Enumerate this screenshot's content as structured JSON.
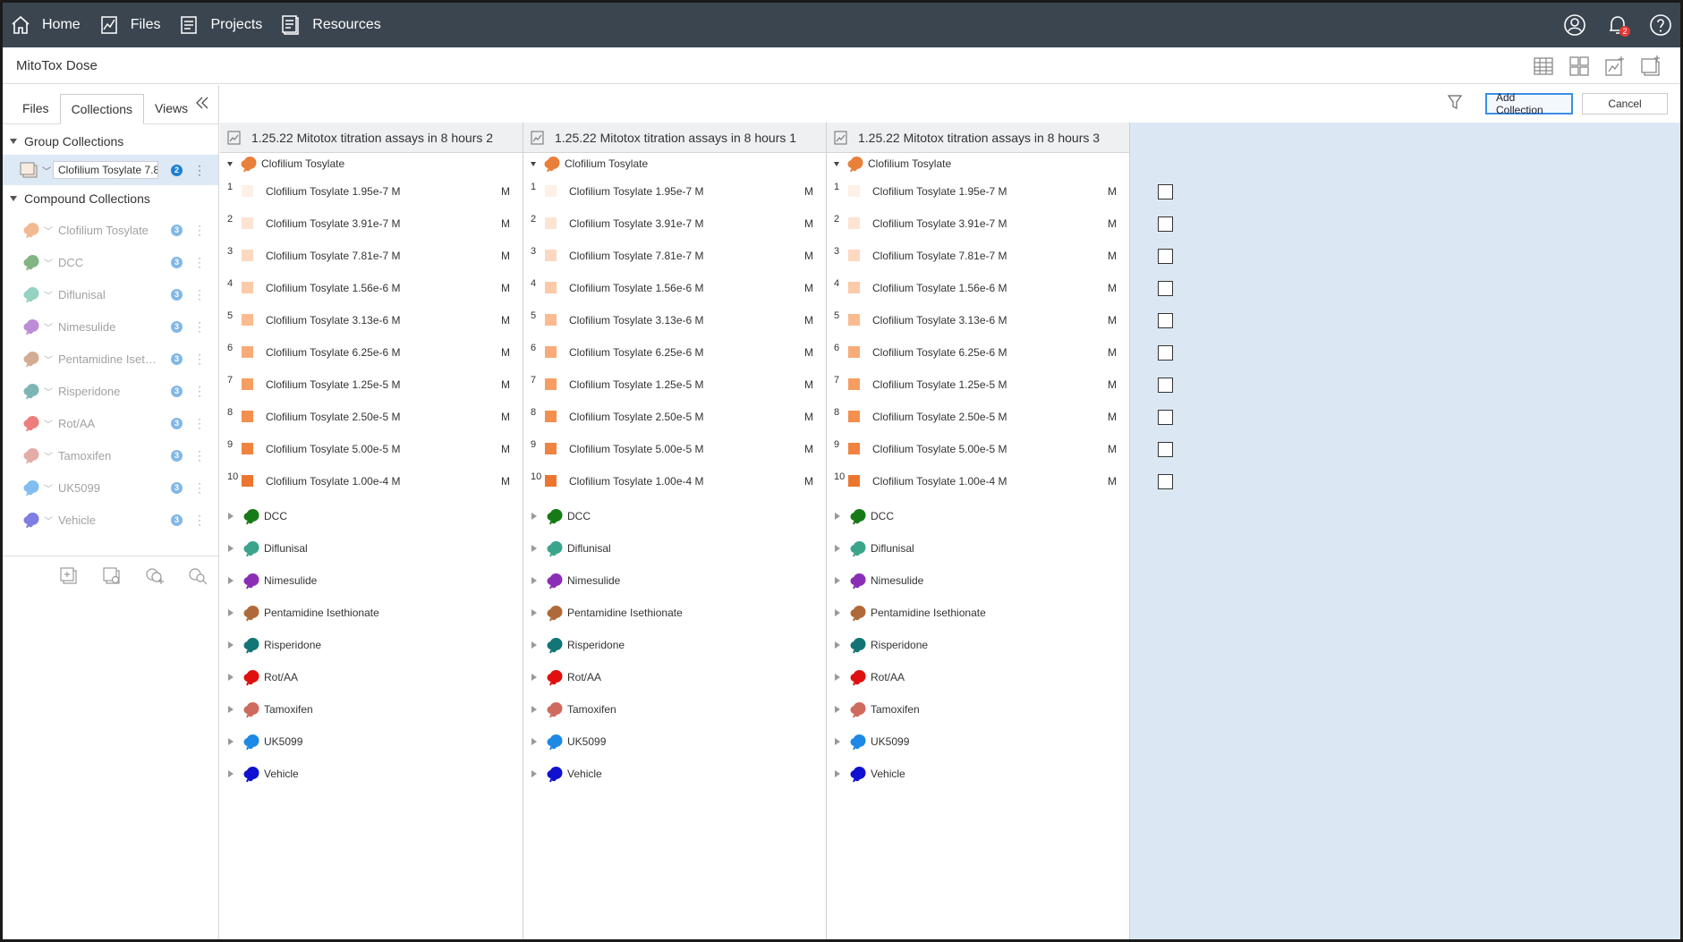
{
  "nav": {
    "items": [
      {
        "label": "Home",
        "icon": "home-icon"
      },
      {
        "label": "Files",
        "icon": "chart-file-icon"
      },
      {
        "label": "Projects",
        "icon": "projects-icon"
      },
      {
        "label": "Resources",
        "icon": "resources-icon"
      }
    ],
    "notification_count": "2"
  },
  "app_title": "MitoTox Dose",
  "left_panel": {
    "tabs": [
      "Files",
      "Collections",
      "Views"
    ],
    "active_tab": "Collections",
    "group_section_title": "Group Collections",
    "group_item": {
      "label": "Clofilium Tosylate 7.8",
      "count": "2"
    },
    "compound_section_title": "Compound Collections",
    "compounds": [
      {
        "name": "Clofilium Tosylate",
        "count": "3",
        "color": "#e8803a"
      },
      {
        "name": "DCC",
        "count": "3",
        "color": "#1e7a1e"
      },
      {
        "name": "Diflunisal",
        "count": "3",
        "color": "#3fae8f"
      },
      {
        "name": "Nimesulide",
        "count": "3",
        "color": "#8a2fb5"
      },
      {
        "name": "Pentamidine Iseth...",
        "count": "3",
        "color": "#b06a3a"
      },
      {
        "name": "Risperidone",
        "count": "3",
        "color": "#147a7a"
      },
      {
        "name": "Rot/AA",
        "count": "3",
        "color": "#e01515"
      },
      {
        "name": "Tamoxifen",
        "count": "3",
        "color": "#cf6a5e"
      },
      {
        "name": "UK5099",
        "count": "3",
        "color": "#1e88e5"
      },
      {
        "name": "Vehicle",
        "count": "3",
        "color": "#1515d0"
      }
    ]
  },
  "actions": {
    "add_collection": "Add Collection",
    "cancel": "Cancel"
  },
  "columns": [
    {
      "title": "1.25.22 Mitotox titration assays in 8 hours 2",
      "checked_index": 2,
      "active": false
    },
    {
      "title": "1.25.22 Mitotox titration assays in 8 hours 1",
      "checked_index": 2,
      "active": false
    },
    {
      "title": "1.25.22 Mitotox titration assays in 8 hours 3",
      "checked_index": -1,
      "active": true
    }
  ],
  "expanded_compound": {
    "name": "Clofilium Tosylate",
    "color": "#e8803a"
  },
  "doses": [
    {
      "idx": "1",
      "label": "Clofilium Tosylate 1.95e-7 M",
      "unit": "M",
      "color": "#fdf0e7"
    },
    {
      "idx": "2",
      "label": "Clofilium Tosylate 3.91e-7 M",
      "unit": "M",
      "color": "#fde3d2"
    },
    {
      "idx": "3",
      "label": "Clofilium Tosylate 7.81e-7 M",
      "unit": "M",
      "color": "#fcd8c0"
    },
    {
      "idx": "4",
      "label": "Clofilium Tosylate 1.56e-6 M",
      "unit": "M",
      "color": "#fbcaa8"
    },
    {
      "idx": "5",
      "label": "Clofilium Tosylate 3.13e-6 M",
      "unit": "M",
      "color": "#fabb90"
    },
    {
      "idx": "6",
      "label": "Clofilium Tosylate 6.25e-6 M",
      "unit": "M",
      "color": "#f8ab78"
    },
    {
      "idx": "7",
      "label": "Clofilium Tosylate 1.25e-5 M",
      "unit": "M",
      "color": "#f69d62"
    },
    {
      "idx": "8",
      "label": "Clofilium Tosylate 2.50e-5 M",
      "unit": "M",
      "color": "#f38f4f"
    },
    {
      "idx": "9",
      "label": "Clofilium Tosylate 5.00e-5 M",
      "unit": "M",
      "color": "#f08340"
    },
    {
      "idx": "10",
      "label": "Clofilium Tosylate 1.00e-4 M",
      "unit": "M",
      "color": "#ec7630"
    }
  ],
  "collapsed_compounds": [
    {
      "name": "DCC",
      "color": "#177a17"
    },
    {
      "name": "Diflunisal",
      "color": "#3aa58a"
    },
    {
      "name": "Nimesulide",
      "color": "#8a2fb5"
    },
    {
      "name": "Pentamidine Isethionate",
      "color": "#b06a3a"
    },
    {
      "name": "Risperidone",
      "color": "#137575"
    },
    {
      "name": "Rot/AA",
      "color": "#e01010"
    },
    {
      "name": "Tamoxifen",
      "color": "#cf6a5e"
    },
    {
      "name": "UK5099",
      "color": "#1e88e5"
    },
    {
      "name": "Vehicle",
      "color": "#1010d0"
    }
  ]
}
